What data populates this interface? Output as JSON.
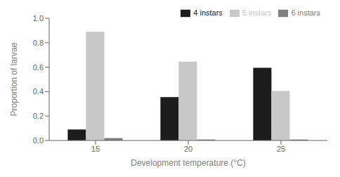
{
  "chart_data": {
    "type": "bar",
    "categories": [
      "15",
      "20",
      "25"
    ],
    "series": [
      {
        "name": "4 instars",
        "color": "#1c1c1c",
        "values": [
          0.09,
          0.355,
          0.595
        ]
      },
      {
        "name": "5 instars",
        "color": "#c8c8c8",
        "values": [
          0.89,
          0.645,
          0.405
        ]
      },
      {
        "name": "6 instars",
        "color": "#808080",
        "values": [
          0.02,
          0.008,
          0.008
        ]
      }
    ],
    "xlabel": "Development temperature (°C)",
    "ylabel": "Proportion of larvae",
    "ylim": [
      0.0,
      1.0
    ],
    "yticks": [
      {
        "value": 0.0,
        "label": "0.0"
      },
      0.2,
      0.4,
      0.6,
      0.8,
      {
        "value": 1.0,
        "label": "1.0"
      }
    ],
    "grid": false,
    "legend": "upper right"
  }
}
